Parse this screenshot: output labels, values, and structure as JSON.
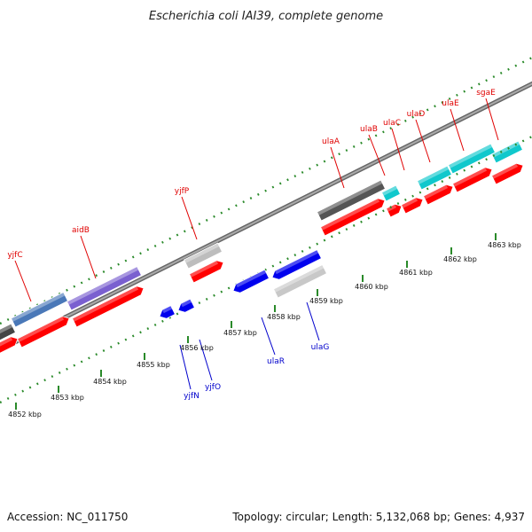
{
  "title": "Escherichia coli IAI39, complete genome",
  "footer": {
    "accession": "Accession: NC_011750",
    "summary": "Topology: circular; Length: 5,132,068 bp; Genes: 4,937"
  },
  "colors": {
    "forward_label": "#e00000",
    "reverse_label": "#0000cc",
    "cds": "#ff0000",
    "cds_reverse": "#0000ee",
    "tick_green": "#2a8a2a",
    "axis_grey": "#888888"
  },
  "scale_labels": [
    "4852 kbp",
    "4853 kbp",
    "4854 kbp",
    "4855 kbp",
    "4856 kbp",
    "4857 kbp",
    "4858 kbp",
    "4859 kbp",
    "4860 kbp",
    "4861 kbp",
    "4862 kbp",
    "4863 kbp"
  ],
  "forward_genes": [
    "yjfC",
    "aidB",
    "yjfP",
    "ulaA",
    "ulaB",
    "ulaC",
    "ulaD",
    "ulaE",
    "sgaE"
  ],
  "reverse_genes": [
    "yjfN",
    "yjfO",
    "ulaR",
    "ulaG"
  ]
}
